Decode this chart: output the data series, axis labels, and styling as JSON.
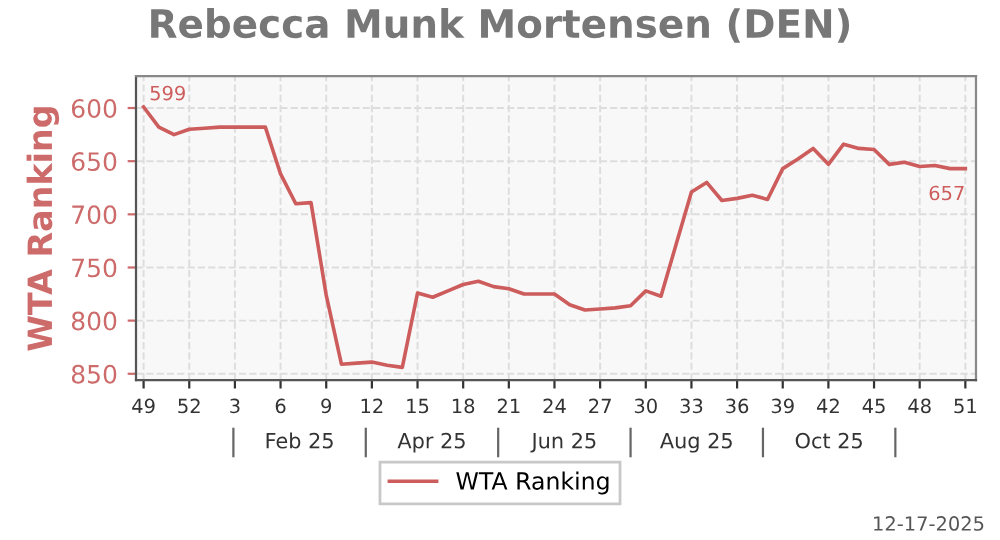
{
  "chart_data": {
    "type": "line",
    "title": "Rebecca Munk Mortensen (DEN)",
    "ylabel": "WTA Ranking",
    "categories": [
      "49",
      null,
      null,
      "52",
      null,
      null,
      "3",
      null,
      null,
      "6",
      null,
      null,
      "9",
      null,
      null,
      "12",
      null,
      null,
      "15",
      null,
      null,
      "18",
      null,
      null,
      "21",
      null,
      null,
      "24",
      null,
      null,
      "27",
      null,
      null,
      "30",
      null,
      null,
      "33",
      null,
      null,
      "36",
      null,
      null,
      "39",
      null,
      null,
      "42",
      null,
      null,
      "45",
      null,
      null,
      "48",
      null,
      null,
      "51"
    ],
    "series": [
      {
        "name": "WTA Ranking",
        "color": "#cd5c5c",
        "values": [
          599,
          618,
          625,
          620,
          619,
          618,
          618,
          618,
          618,
          662,
          690,
          689,
          776,
          841,
          840,
          839,
          842,
          844,
          774,
          778,
          772,
          766,
          763,
          768,
          770,
          775,
          775,
          775,
          785,
          790,
          789,
          788,
          786,
          772,
          777,
          728,
          679,
          670,
          687,
          685,
          682,
          686,
          657,
          648,
          638,
          653,
          634,
          638,
          639,
          653,
          651,
          655,
          654,
          657,
          657
        ],
        "value_labels": [
          "599",
          null,
          null,
          null,
          null,
          null,
          null,
          null,
          null,
          null,
          null,
          null,
          null,
          null,
          null,
          null,
          null,
          null,
          null,
          null,
          null,
          null,
          null,
          null,
          null,
          null,
          null,
          null,
          null,
          null,
          null,
          null,
          null,
          null,
          null,
          null,
          null,
          null,
          null,
          null,
          null,
          null,
          null,
          null,
          null,
          null,
          null,
          null,
          null,
          null,
          null,
          null,
          null,
          null,
          "657"
        ]
      }
    ],
    "ylim": [
      856,
      570
    ],
    "yticks": [
      600,
      650,
      700,
      750,
      800,
      850
    ],
    "grid": true,
    "legend": "bottom",
    "marker": "none",
    "line_style": "solid",
    "annotations": [
      "Feb 25",
      "Apr 25",
      "Jun 25",
      "Aug 25",
      "Oct 25",
      "12-17-2025"
    ]
  }
}
